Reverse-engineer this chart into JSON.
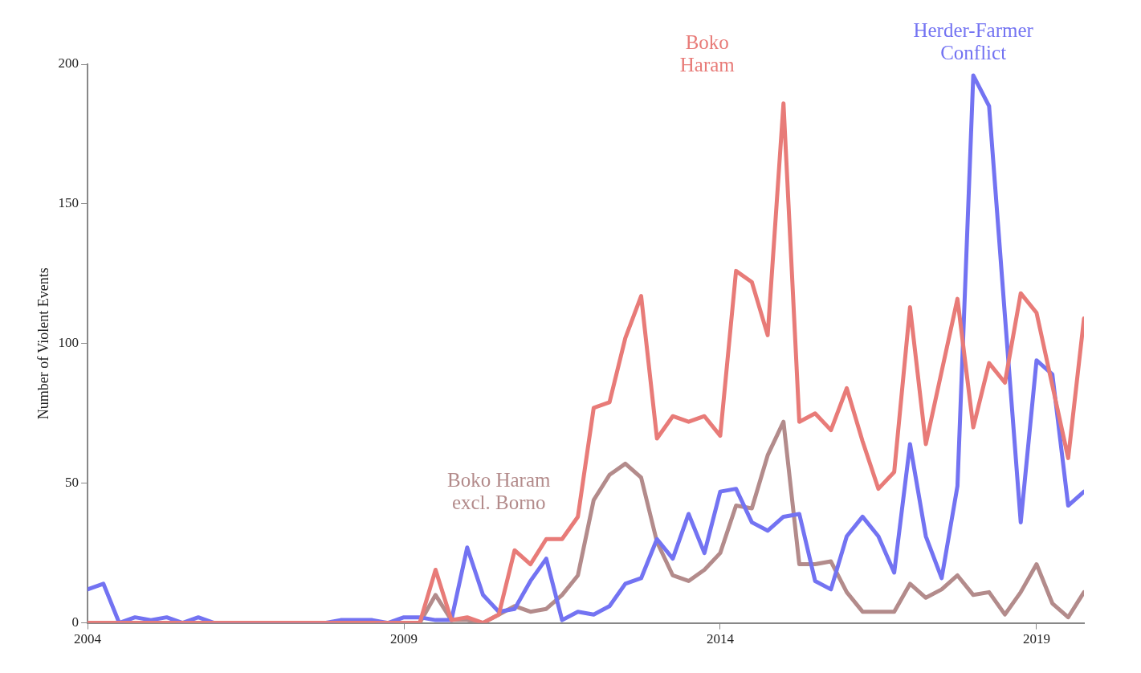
{
  "chart_data": {
    "type": "line",
    "ylabel": "Number of Violent Events",
    "x": [
      2004,
      2004.25,
      2004.5,
      2004.75,
      2005,
      2005.25,
      2005.5,
      2005.75,
      2006,
      2006.25,
      2006.5,
      2006.75,
      2007,
      2007.25,
      2007.5,
      2007.75,
      2008,
      2008.25,
      2008.5,
      2008.75,
      2009,
      2009.25,
      2009.5,
      2009.75,
      2010,
      2010.25,
      2010.5,
      2010.75,
      2011,
      2011.25,
      2011.5,
      2011.75,
      2012,
      2012.25,
      2012.5,
      2012.75,
      2013,
      2013.25,
      2013.5,
      2013.75,
      2014,
      2014.25,
      2014.5,
      2014.75,
      2015,
      2015.25,
      2015.5,
      2015.75,
      2016,
      2016.25,
      2016.5,
      2016.75,
      2017,
      2017.25,
      2017.5,
      2017.75,
      2018,
      2018.25,
      2018.5,
      2018.75,
      2019,
      2019.25,
      2019.5,
      2019.75
    ],
    "series": [
      {
        "name": "Boko Haram",
        "color": "#e87b78",
        "values": [
          0,
          0,
          0,
          0,
          0,
          0,
          0,
          0,
          0,
          0,
          0,
          0,
          0,
          0,
          0,
          0,
          0,
          0,
          0,
          0,
          0,
          0,
          19,
          1,
          2,
          0,
          3,
          26,
          21,
          30,
          30,
          38,
          77,
          79,
          102,
          117,
          66,
          74,
          72,
          74,
          67,
          126,
          122,
          103,
          186,
          72,
          75,
          69,
          84,
          65,
          48,
          54,
          113,
          64,
          90,
          116,
          70,
          93,
          86,
          118,
          111,
          85,
          59,
          109
        ]
      },
      {
        "name": "Herder-Farmer Conflict",
        "color": "#7373f2",
        "values": [
          12,
          14,
          0,
          2,
          1,
          2,
          0,
          2,
          0,
          0,
          0,
          0,
          0,
          0,
          0,
          0,
          1,
          1,
          1,
          0,
          2,
          2,
          1,
          1,
          27,
          10,
          4,
          5,
          15,
          23,
          1,
          4,
          3,
          6,
          14,
          16,
          30,
          23,
          39,
          25,
          47,
          48,
          36,
          33,
          38,
          39,
          15,
          12,
          31,
          38,
          31,
          18,
          64,
          31,
          16,
          49,
          196,
          185,
          110,
          36,
          94,
          89,
          42,
          47
        ]
      },
      {
        "name": "Boko Haram excl. Borno",
        "color": "#b38b8b",
        "values": [
          0,
          0,
          0,
          0,
          0,
          0,
          0,
          0,
          0,
          0,
          0,
          0,
          0,
          0,
          0,
          0,
          0,
          0,
          0,
          0,
          0,
          0,
          10,
          1,
          1,
          0,
          3,
          6,
          4,
          5,
          10,
          17,
          44,
          53,
          57,
          52,
          29,
          17,
          15,
          19,
          25,
          42,
          41,
          60,
          72,
          21,
          21,
          22,
          11,
          4,
          4,
          4,
          14,
          9,
          12,
          17,
          10,
          11,
          3,
          11,
          21,
          7,
          2,
          11
        ]
      }
    ],
    "xlim": [
      2004,
      2019.75
    ],
    "xticks": [
      2004,
      2009,
      2014,
      2019
    ],
    "ylim": [
      0,
      200
    ],
    "yticks": [
      0,
      50,
      100,
      150,
      200
    ],
    "grid": false,
    "legend": false,
    "marker": "none",
    "line_style": "solid"
  }
}
